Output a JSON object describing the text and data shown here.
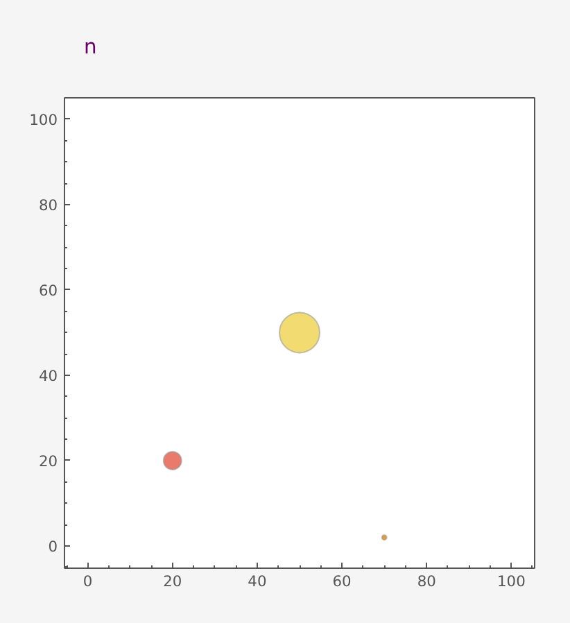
{
  "chart_data": {
    "type": "bubble",
    "annotations": [
      "n"
    ],
    "x": [
      20,
      50,
      70
    ],
    "values": [
      20,
      50,
      2
    ],
    "sizes": [
      0.2,
      1,
      0.014
    ],
    "colors": [
      "#e97a6c",
      "#f2dc72",
      "#e89a3a"
    ],
    "xlim": [
      -5.5,
      105.5
    ],
    "ylim": [
      -5.2,
      105
    ],
    "xticks": [
      0,
      20,
      40,
      60,
      80,
      100
    ],
    "yticks": [
      0,
      20,
      40,
      60,
      80,
      100
    ],
    "grid": false
  }
}
